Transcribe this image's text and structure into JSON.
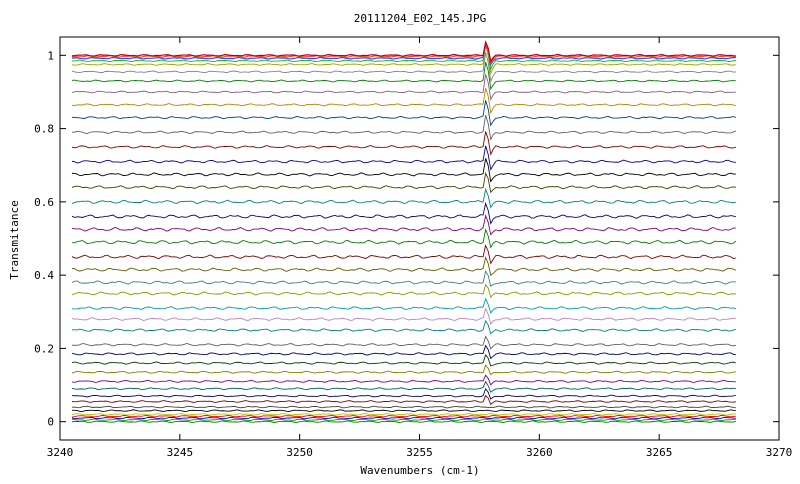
{
  "chart_data": {
    "type": "line",
    "title": "20111204_E02_145.JPG",
    "xlabel": "Wavenumbers (cm-1)",
    "ylabel": "Transmitance",
    "xlim": [
      3240,
      3270
    ],
    "ylim": [
      -0.05,
      1.05
    ],
    "xticks": [
      3240,
      3245,
      3250,
      3255,
      3260,
      3265,
      3270
    ],
    "xtick_labels": [
      "3240",
      "3245",
      "3250",
      "3255",
      "3260",
      "3265",
      "3270"
    ],
    "yticks": [
      0,
      0.2,
      0.4,
      0.6,
      0.8,
      1
    ],
    "ytick_labels": [
      "0",
      "0.2",
      "0.4",
      "0.6",
      "0.8",
      "1"
    ],
    "grid": false,
    "legend": "none",
    "x_range_of_data": [
      3240.5,
      3268.2
    ],
    "peak_position": 3257.8,
    "series_baselines": [
      0.0,
      0.005,
      0.01,
      0.015,
      0.02,
      0.03,
      0.04,
      0.055,
      0.07,
      0.09,
      0.11,
      0.135,
      0.16,
      0.185,
      0.21,
      0.25,
      0.28,
      0.31,
      0.35,
      0.38,
      0.415,
      0.45,
      0.49,
      0.525,
      0.56,
      0.6,
      0.64,
      0.675,
      0.71,
      0.75,
      0.79,
      0.83,
      0.865,
      0.9,
      0.93,
      0.955,
      0.975,
      0.985,
      0.992,
      0.997,
      1.0
    ],
    "series_colors": [
      "#008000",
      "#00a000",
      "#0000c0",
      "#ff0000",
      "#c0c000",
      "#000000",
      "#404040",
      "#800000",
      "#000080",
      "#006060",
      "#800080",
      "#808000",
      "#004000",
      "#000060",
      "#606060",
      "#008080",
      "#c080c0",
      "#00a0a0",
      "#80a000",
      "#408080",
      "#606000",
      "#800000",
      "#008000",
      "#800080",
      "#000080",
      "#008080",
      "#404000",
      "#000000",
      "#0000a0",
      "#800000",
      "#606060",
      "#004080",
      "#c08000",
      "#806080",
      "#008000",
      "#808080",
      "#a0a000",
      "#00c000",
      "#4040ff",
      "#ff4040",
      "#c00000"
    ]
  }
}
